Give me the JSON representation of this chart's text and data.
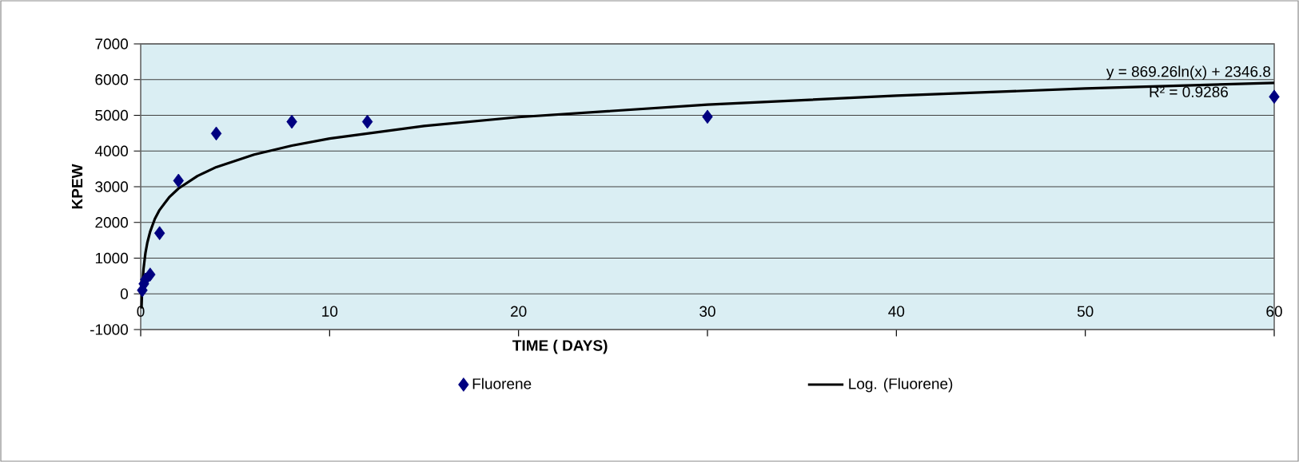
{
  "chart_data": {
    "type": "scatter",
    "xlabel": "TIME ( DAYS)",
    "ylabel": "KPEW",
    "xlim": [
      0,
      60
    ],
    "xticks": [
      0,
      10,
      20,
      30,
      40,
      50,
      60
    ],
    "ylim": [
      -1000,
      7000
    ],
    "yticks": [
      -1000,
      0,
      1000,
      2000,
      3000,
      4000,
      5000,
      6000,
      7000
    ],
    "grid": "y",
    "legend": "bottom",
    "annotations": [
      "y = 869.26ln(x) + 2346.8",
      "R² = 0.9286"
    ],
    "series": [
      {
        "name": "Fluorene",
        "color": "#000080",
        "marker": "diamond",
        "x": [
          0.083,
          0.167,
          0.25,
          0.5,
          1,
          2,
          4,
          8,
          12,
          30,
          60
        ],
        "values": [
          100,
          280,
          400,
          540,
          1700,
          3170,
          4490,
          4820,
          4820,
          4960,
          5520
        ]
      },
      {
        "name": "Log. (Fluorene)",
        "type": "line",
        "color": "#000000",
        "marker": "none",
        "x": [
          0.042,
          0.07,
          0.1,
          0.15,
          0.25,
          0.35,
          0.5,
          0.75,
          1,
          1.5,
          2,
          3,
          4,
          6,
          8,
          10,
          15,
          20,
          30,
          40,
          50,
          60
        ],
        "values": [
          -410,
          40,
          350,
          700,
          1140,
          1430,
          1740,
          2100,
          2350,
          2700,
          2950,
          3300,
          3550,
          3900,
          4150,
          4350,
          4700,
          4950,
          5300,
          5550,
          5750,
          5910
        ]
      }
    ]
  }
}
